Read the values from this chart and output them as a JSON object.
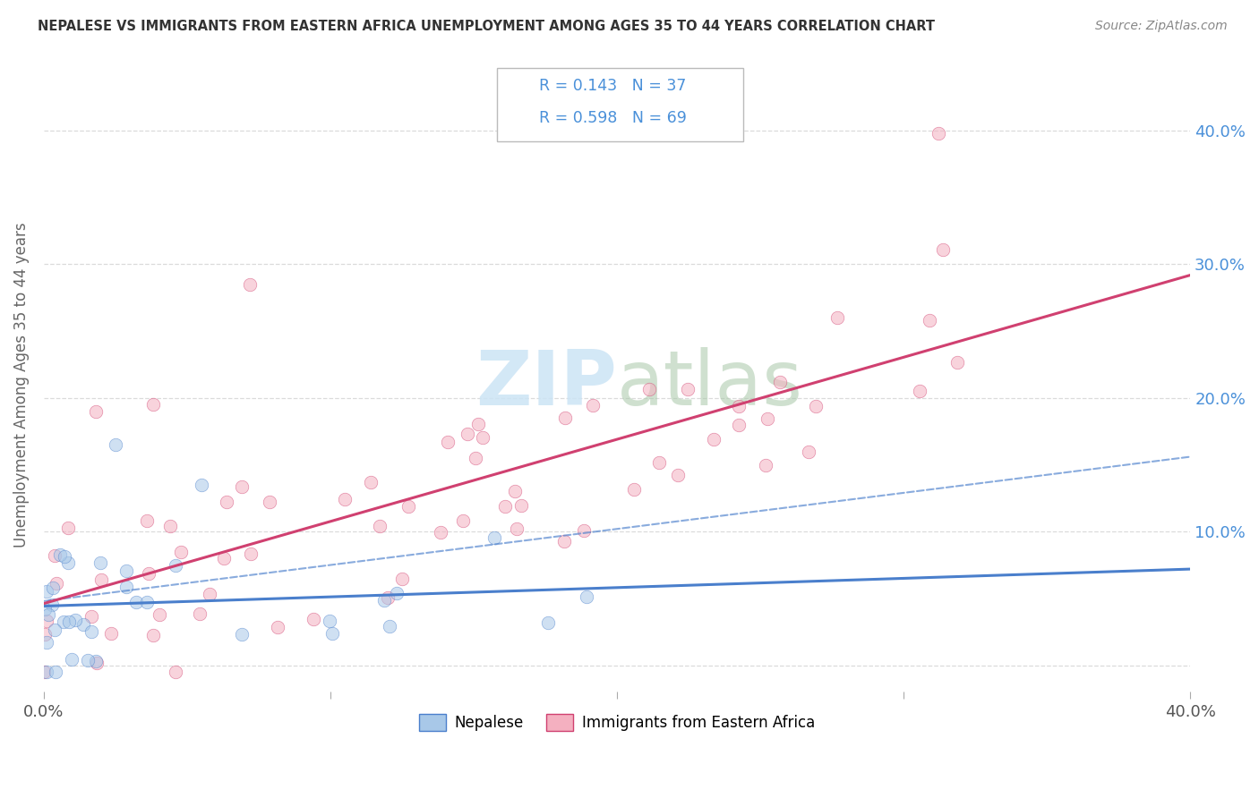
{
  "title": "NEPALESE VS IMMIGRANTS FROM EASTERN AFRICA UNEMPLOYMENT AMONG AGES 35 TO 44 YEARS CORRELATION CHART",
  "source": "Source: ZipAtlas.com",
  "ylabel": "Unemployment Among Ages 35 to 44 years",
  "xlim": [
    0.0,
    0.4
  ],
  "ylim": [
    -0.02,
    0.44
  ],
  "xticks": [
    0.0,
    0.1,
    0.2,
    0.3,
    0.4
  ],
  "xticklabels_show": [
    "0.0%",
    "",
    "",
    "",
    "40.0%"
  ],
  "yticks": [
    0.0,
    0.1,
    0.2,
    0.3,
    0.4
  ],
  "yticklabels_right": [
    "",
    "10.0%",
    "20.0%",
    "30.0%",
    "40.0%"
  ],
  "R_nepalese": 0.143,
  "N_nepalese": 37,
  "R_eastern_africa": 0.598,
  "N_eastern_africa": 69,
  "nepalese_color": "#a8c8e8",
  "eastern_africa_color": "#f4b0c0",
  "nepalese_line_color": "#4a7fcc",
  "eastern_africa_line_color": "#d04070",
  "watermark_color": "#cce4f5",
  "background_color": "#ffffff",
  "grid_color": "#cccccc",
  "tick_color": "#aaaaaa",
  "title_color": "#333333",
  "source_color": "#888888",
  "ylabel_color": "#666666",
  "right_tick_color": "#4a90d9",
  "legend_box_color": "#aaaaaa",
  "legend_text_color": "#4a90d9"
}
